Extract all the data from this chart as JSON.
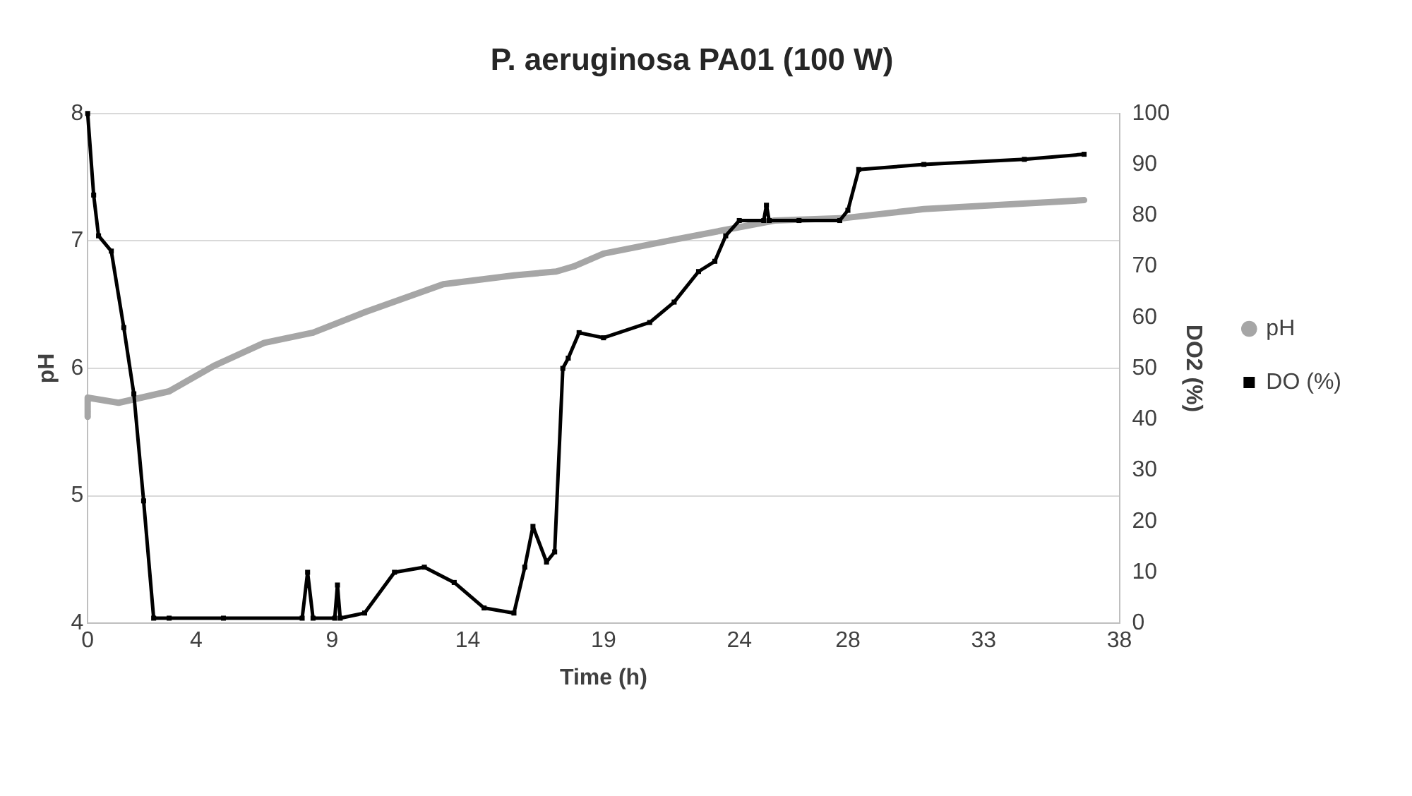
{
  "chart_data": {
    "type": "line",
    "title": "P. aeruginosa PA01 (100 W)",
    "xlabel": "Time (h)",
    "ylabel": "pH",
    "y2label": "DO2 (%)",
    "xlim": [
      0,
      38
    ],
    "xticks": [
      0,
      4,
      9,
      14,
      19,
      24,
      28,
      33,
      38
    ],
    "ylim": [
      4,
      8
    ],
    "yticks": [
      4,
      5,
      6,
      7,
      8
    ],
    "y2lim": [
      0,
      100
    ],
    "y2ticks": [
      0,
      10,
      20,
      30,
      40,
      50,
      60,
      70,
      80,
      90,
      100
    ],
    "grid": "y",
    "legend": "right",
    "series": [
      {
        "name": "pH",
        "color": "#a6a6a6",
        "marker": "circle",
        "x": [
          0,
          0,
          0,
          1.14,
          3.0,
          4.65,
          6.5,
          8.3,
          10.2,
          13.1,
          15.7,
          17.26,
          17.9,
          19.0,
          21.6,
          25.3,
          27.9,
          30.8,
          36.7
        ],
        "values": [
          5.62,
          5.66,
          5.77,
          5.73,
          5.82,
          6.02,
          6.2,
          6.28,
          6.44,
          6.66,
          6.73,
          6.76,
          6.8,
          6.9,
          7.01,
          7.16,
          7.18,
          7.25,
          7.32
        ]
      },
      {
        "name": "DO (%)",
        "color": "#000000",
        "marker": "square",
        "axis": "y2",
        "x": [
          0,
          0.22,
          0.4,
          0.87,
          1.33,
          1.7,
          2.06,
          2.43,
          3,
          5,
          7.9,
          8.1,
          8.3,
          9.1,
          9.2,
          9.3,
          10.2,
          11.3,
          12.4,
          13.5,
          14.6,
          15.7,
          16.1,
          16.4,
          16.9,
          17.2,
          17.5,
          17.7,
          18.1,
          19.0,
          20.7,
          21.6,
          22.5,
          23.1,
          23.5,
          24.0,
          24.9,
          25.0,
          25.1,
          26.2,
          27.7,
          28.0,
          28.4,
          30.8,
          34.5,
          36.7
        ],
        "values": [
          100,
          84,
          76,
          73,
          58,
          45,
          24,
          1,
          1,
          1,
          1,
          10,
          1,
          1,
          7.5,
          1,
          2,
          10,
          11,
          8,
          3,
          2,
          11,
          19,
          12,
          14,
          50,
          52,
          57,
          56,
          59,
          63,
          69,
          71,
          76,
          79,
          79,
          82,
          79,
          79,
          79,
          81,
          89,
          90,
          91,
          92
        ]
      }
    ]
  }
}
